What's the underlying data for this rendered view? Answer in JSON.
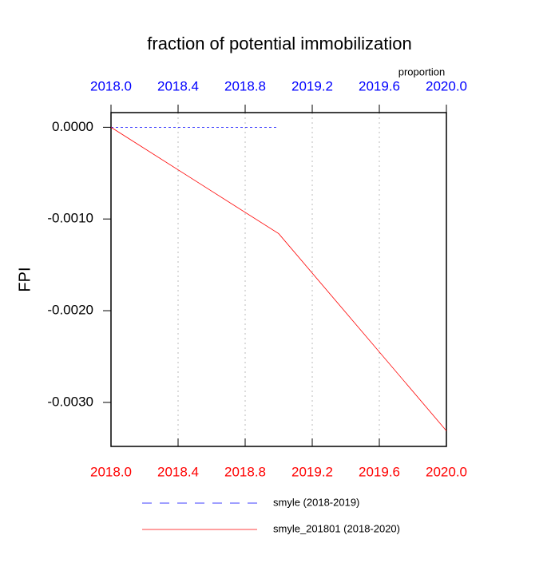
{
  "chart_data": {
    "type": "line",
    "title": "fraction of potential immobilization",
    "ylabel": "FPI",
    "top_axis_label": "proportion",
    "xlim": [
      2018,
      2020
    ],
    "xticks": [
      {
        "value": 2018,
        "label": "2018.0"
      },
      {
        "value": 2018.4,
        "label": "2018.4"
      },
      {
        "value": 2018.8,
        "label": "2018.8"
      },
      {
        "value": 2019.2,
        "label": "2019.2"
      },
      {
        "value": 2019.6,
        "label": "2019.6"
      },
      {
        "value": 2020,
        "label": "2020.0"
      }
    ],
    "bottom_axis_color": "red",
    "top_axis_color": "blue",
    "ylim": [
      -0.00348,
      0.00016
    ],
    "yticks": [
      {
        "value": 0,
        "label": "0.0000"
      },
      {
        "value": -0.001,
        "label": "-0.0010"
      },
      {
        "value": -0.002,
        "label": "-0.0020"
      },
      {
        "value": -0.003,
        "label": "-0.0030"
      }
    ],
    "grid": true,
    "series": [
      {
        "name": "smyle (2018-2019)",
        "color": "blue",
        "style": "dashed",
        "x": [
          2018,
          2019
        ],
        "values": [
          0,
          0
        ]
      },
      {
        "name": "smyle_201801 (2018-2020)",
        "color": "red",
        "style": "solid",
        "x": [
          2018,
          2019,
          2020
        ],
        "values": [
          0,
          -0.00116,
          -0.00331
        ]
      }
    ]
  }
}
